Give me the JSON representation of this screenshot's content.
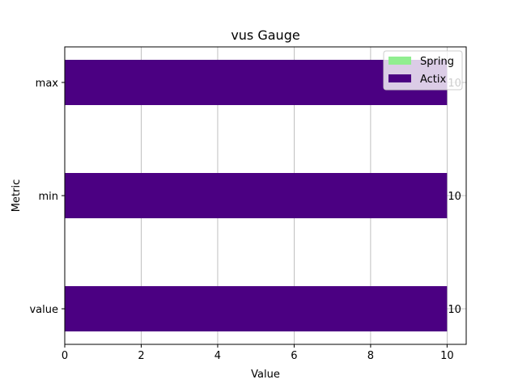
{
  "chart_data": {
    "type": "bar",
    "orientation": "horizontal",
    "title": "vus Gauge",
    "xlabel": "Value",
    "ylabel": "Metric",
    "categories": [
      "value",
      "min",
      "max"
    ],
    "series": [
      {
        "name": "Spring",
        "values": [
          10,
          10,
          10
        ],
        "color": "#90ee90"
      },
      {
        "name": "Actix",
        "values": [
          10,
          10,
          10
        ],
        "color": "#4b0082"
      }
    ],
    "xlim": [
      0,
      10.5
    ],
    "xticks": [
      0,
      2,
      4,
      6,
      8,
      10
    ],
    "grid": true,
    "legend_position": "top-right",
    "data_labels": [
      "10",
      "10",
      "10"
    ]
  }
}
